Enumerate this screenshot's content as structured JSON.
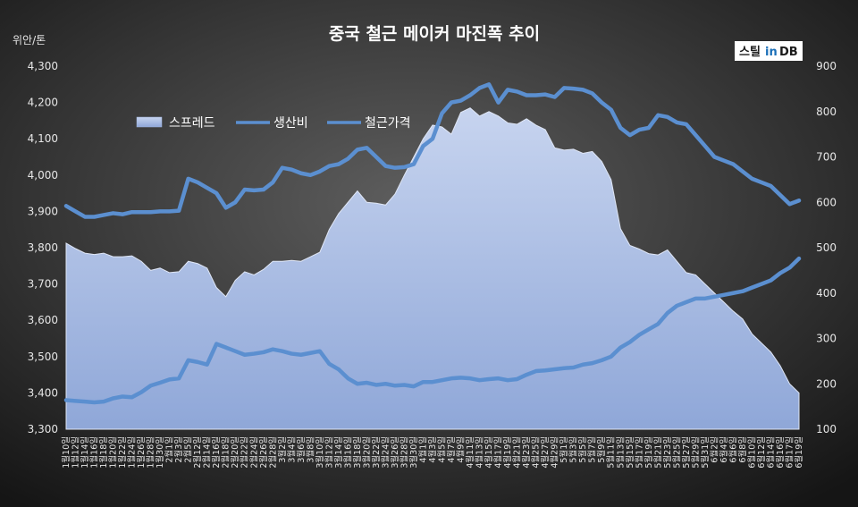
{
  "chart_data": {
    "type": "line",
    "title": "중국 철근 메이커 마진폭 추이",
    "unit_label": "위안/톤",
    "brand": {
      "text_a": "스틸",
      "text_b": "in",
      "text_c": "DB"
    },
    "colors": {
      "spread_fill_top": "#c7d4ef",
      "spread_fill_bottom": "#8fa7d8",
      "line": "#5b8fd0",
      "bg_center": "#5e5e5e",
      "bg_edge": "#151515"
    },
    "y_left": {
      "min": 3300,
      "max": 4300,
      "ticks": [
        "3,300",
        "3,400",
        "3,500",
        "3,600",
        "3,700",
        "3,800",
        "3,900",
        "4,000",
        "4,100",
        "4,200",
        "4,300"
      ]
    },
    "y_right": {
      "min": 100,
      "max": 900,
      "ticks": [
        "100",
        "200",
        "300",
        "400",
        "500",
        "600",
        "700",
        "800",
        "900"
      ]
    },
    "legend": [
      "스프레드",
      "생산비",
      "철근가격"
    ],
    "x_labels": [
      "1월10일",
      "1월12일",
      "1월14일",
      "1월16일",
      "1월18일",
      "1월20일",
      "1월22일",
      "1월24일",
      "1월26일",
      "1월28일",
      "1월30일",
      "2월1일",
      "2월3일",
      "2월5일",
      "2월12일",
      "2월14일",
      "2월16일",
      "2월18일",
      "2월20일",
      "2월22일",
      "2월24일",
      "2월26일",
      "2월28일",
      "3월2일",
      "3월4일",
      "3월6일",
      "3월8일",
      "3월10일",
      "3월12일",
      "3월14일",
      "3월16일",
      "3월18일",
      "3월20일",
      "3월22일",
      "3월24일",
      "3월26일",
      "3월28일",
      "3월30일",
      "4월1일",
      "4월3일",
      "4월5일",
      "4월7일",
      "4월9일",
      "4월11일",
      "4월13일",
      "4월15일",
      "4월17일",
      "4월19일",
      "4월21일",
      "4월23일",
      "4월25일",
      "4월27일",
      "4월29일",
      "5월1일",
      "5월3일",
      "5월5일",
      "5월7일",
      "5월9일",
      "5월11일",
      "5월13일",
      "5월15일",
      "5월17일",
      "5월19일",
      "5월21일",
      "5월23일",
      "5월25일",
      "5월27일",
      "5월29일",
      "5월31일",
      "6월2일",
      "6월4일",
      "6월6일",
      "6월8일",
      "6월10일",
      "6월12일",
      "6월14일",
      "6월16일",
      "6월17일",
      "6월19일"
    ],
    "series": [
      {
        "name": "스프레드",
        "axis": "right",
        "style": "area",
        "values": [
          510,
          498,
          488,
          485,
          488,
          480,
          480,
          482,
          470,
          450,
          455,
          445,
          447,
          470,
          465,
          455,
          412,
          392,
          428,
          447,
          440,
          452,
          470,
          470,
          472,
          470,
          480,
          490,
          540,
          575,
          600,
          625,
          600,
          598,
          594,
          618,
          660,
          700,
          740,
          770,
          766,
          750,
          798,
          808,
          790,
          800,
          790,
          775,
          772,
          784,
          770,
          760,
          720,
          715,
          717,
          708,
          712,
          690,
          650,
          542,
          505,
          497,
          487,
          484,
          495,
          470,
          445,
          440,
          420,
          400,
          380,
          360,
          343,
          310,
          290,
          270,
          240,
          200,
          180
        ]
      },
      {
        "name": "생산비",
        "axis": "left",
        "style": "line",
        "values": [
          3380,
          3378,
          3376,
          3374,
          3376,
          3385,
          3390,
          3388,
          3402,
          3420,
          3428,
          3437,
          3440,
          3490,
          3485,
          3478,
          3535,
          3525,
          3515,
          3505,
          3508,
          3512,
          3520,
          3515,
          3508,
          3505,
          3510,
          3515,
          3480,
          3465,
          3440,
          3425,
          3428,
          3422,
          3425,
          3420,
          3422,
          3418,
          3430,
          3430,
          3435,
          3440,
          3442,
          3440,
          3435,
          3438,
          3440,
          3435,
          3438,
          3450,
          3460,
          3462,
          3465,
          3468,
          3470,
          3478,
          3482,
          3490,
          3500,
          3525,
          3540,
          3560,
          3575,
          3590,
          3620,
          3640,
          3650,
          3660,
          3660,
          3665,
          3670,
          3675,
          3680,
          3690,
          3700,
          3710,
          3730,
          3745,
          3770
        ]
      },
      {
        "name": "철근가격",
        "axis": "left",
        "style": "line",
        "values": [
          3915,
          3900,
          3885,
          3885,
          3890,
          3895,
          3892,
          3898,
          3898,
          3898,
          3900,
          3900,
          3902,
          3990,
          3980,
          3965,
          3950,
          3910,
          3925,
          3960,
          3958,
          3960,
          3980,
          4020,
          4015,
          4005,
          4000,
          4010,
          4025,
          4030,
          4045,
          4070,
          4075,
          4050,
          4025,
          4020,
          4022,
          4030,
          4080,
          4100,
          4170,
          4200,
          4205,
          4220,
          4240,
          4250,
          4200,
          4235,
          4230,
          4220,
          4220,
          4222,
          4215,
          4240,
          4238,
          4235,
          4225,
          4200,
          4180,
          4130,
          4110,
          4125,
          4130,
          4165,
          4160,
          4145,
          4140,
          4110,
          4080,
          4050,
          4040,
          4030,
          4010,
          3990,
          3980,
          3970,
          3945,
          3920,
          3930
        ]
      }
    ]
  }
}
